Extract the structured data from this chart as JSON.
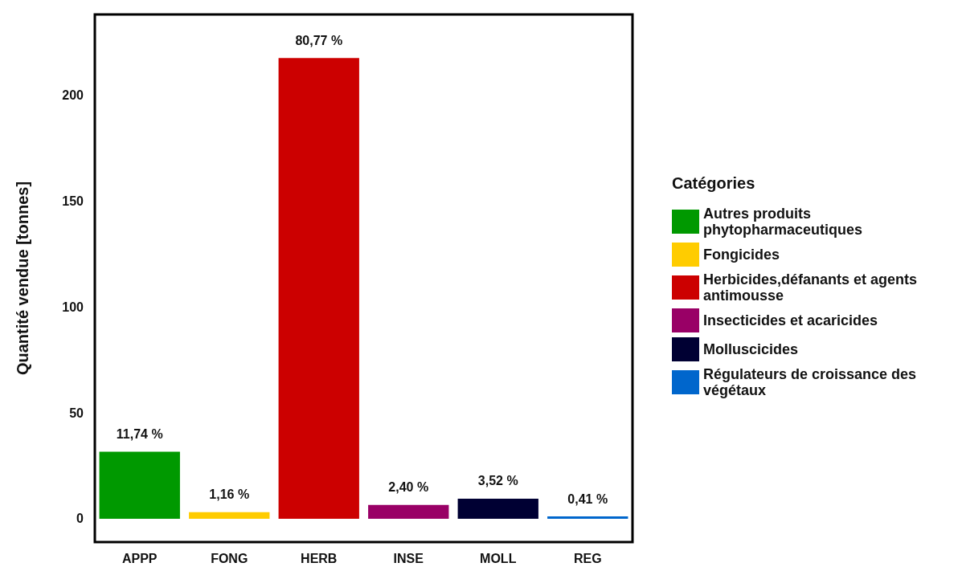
{
  "chart_data": {
    "type": "bar",
    "ylabel": "Quantité vendue [tonnes]",
    "legend_title": "Catégories",
    "legend": "right",
    "categories": [
      "APPP",
      "FONG",
      "HERB",
      "INSE",
      "MOLL",
      "REG"
    ],
    "stacked": true,
    "series": [
      {
        "name": "Autres produits phytopharmaceutiques",
        "color": "#009900",
        "values": [
          31.6,
          null,
          null,
          null,
          null,
          null
        ]
      },
      {
        "name": "Fongicides",
        "color": "#ffcc00",
        "values": [
          null,
          3.1,
          null,
          null,
          null,
          null
        ]
      },
      {
        "name": "Herbicides,défanants et agents antimousse",
        "color": "#cc0000",
        "values": [
          null,
          null,
          217.4,
          null,
          null,
          null
        ]
      },
      {
        "name": "Insecticides et acaricides",
        "color": "#990066",
        "values": [
          null,
          null,
          null,
          6.5,
          null,
          null
        ]
      },
      {
        "name": "Molluscicides",
        "color": "#000033",
        "values": [
          null,
          null,
          null,
          null,
          9.5,
          null
        ]
      },
      {
        "name": "Régulateurs de croissance des végétaux",
        "color": "#0066cc",
        "values": [
          null,
          null,
          null,
          null,
          null,
          1.1
        ]
      }
    ],
    "value_labels": [
      "11,74 %",
      "1,16 %",
      "80,77 %",
      "2,40 %",
      "3,52 %",
      "0,41 %"
    ],
    "ylim": [
      -11,
      238
    ],
    "yticks": [
      0,
      50,
      100,
      150,
      200
    ],
    "grid": false
  }
}
